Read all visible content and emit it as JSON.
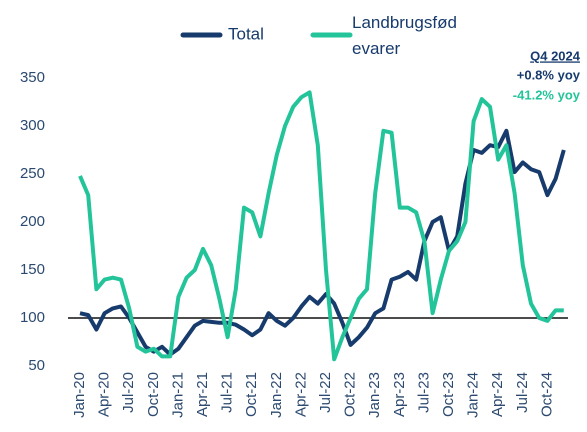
{
  "chart_data": {
    "type": "line",
    "categories": [
      "Jan-20",
      null,
      null,
      "Apr-20",
      null,
      null,
      "Jul-20",
      null,
      null,
      "Oct-20",
      null,
      null,
      "Jan-21",
      null,
      null,
      "Apr-21",
      null,
      null,
      "Jul-21",
      null,
      null,
      "Oct-21",
      null,
      null,
      "Jan-22",
      null,
      null,
      "Apr-22",
      null,
      null,
      "Jul-22",
      null,
      null,
      "Oct-22",
      null,
      null,
      "Jan-23",
      null,
      null,
      "Apr-23",
      null,
      null,
      "Jul-23",
      null,
      null,
      "Oct-23",
      null,
      null,
      "Jan-24",
      null,
      null,
      "Apr-24",
      null,
      null,
      "Jul-24",
      null,
      null,
      "Oct-24",
      null,
      null
    ],
    "series": [
      {
        "name": "Total",
        "color": "#173b6c",
        "values": [
          105,
          103,
          88,
          105,
          110,
          112,
          100,
          85,
          70,
          65,
          70,
          62,
          68,
          80,
          92,
          97,
          96,
          95,
          95,
          93,
          88,
          82,
          88,
          105,
          97,
          92,
          100,
          112,
          122,
          115,
          125,
          115,
          95,
          72,
          80,
          90,
          105,
          110,
          140,
          143,
          148,
          140,
          180,
          200,
          205,
          170,
          185,
          240,
          275,
          272,
          280,
          278,
          295,
          252,
          262,
          255,
          252,
          228,
          245,
          275
        ]
      },
      {
        "name": "Landbrugsfødevarer",
        "color": "#23c49a",
        "values": [
          248,
          228,
          130,
          140,
          142,
          140,
          110,
          70,
          65,
          68,
          60,
          60,
          122,
          142,
          150,
          172,
          155,
          120,
          80,
          130,
          215,
          210,
          185,
          230,
          270,
          300,
          320,
          330,
          335,
          280,
          150,
          57,
          80,
          100,
          120,
          130,
          230,
          295,
          293,
          215,
          215,
          210,
          180,
          105,
          140,
          170,
          180,
          200,
          305,
          328,
          320,
          265,
          280,
          230,
          155,
          115,
          100,
          97,
          108,
          108
        ]
      }
    ],
    "ylim": [
      50,
      350
    ],
    "yticks": [
      50,
      100,
      150,
      200,
      250,
      300,
      350
    ],
    "reference_line": 100,
    "annotations": {
      "title": "Q4 2024",
      "total": "+0.8% yoy",
      "food": "-41.2% yoy"
    }
  }
}
